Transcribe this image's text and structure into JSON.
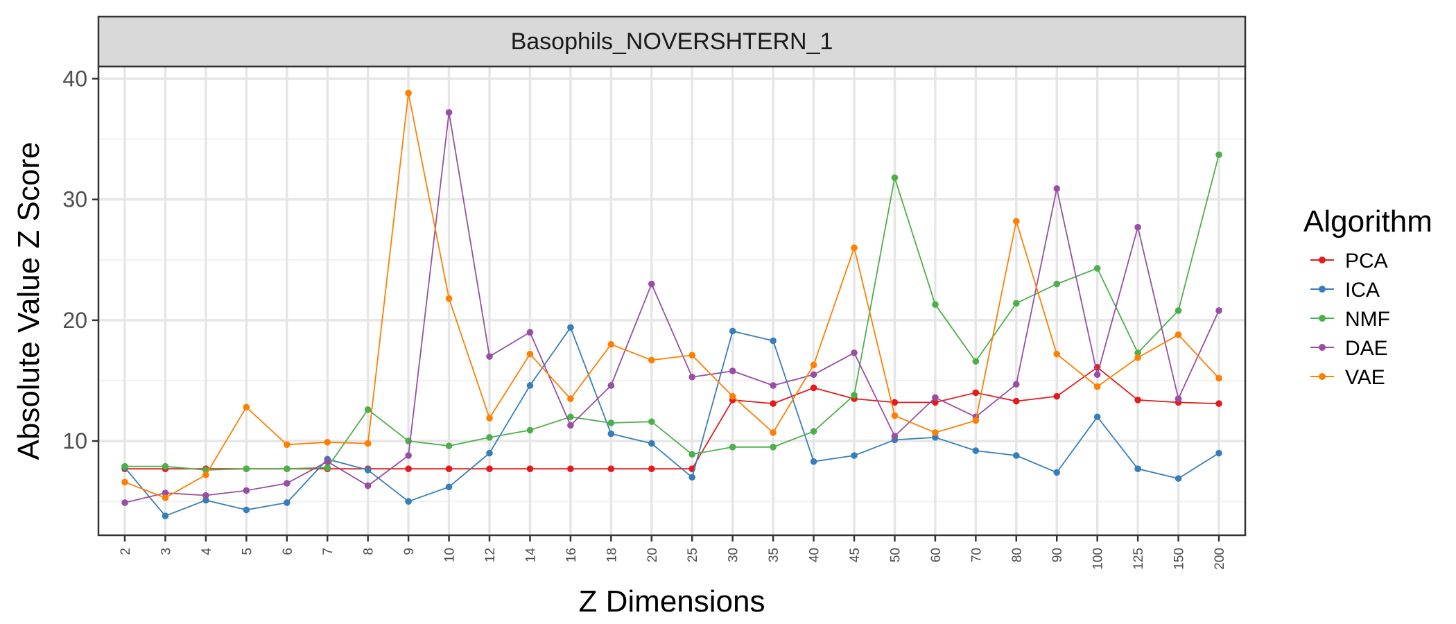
{
  "chart_data": {
    "type": "line",
    "title": "",
    "facet_label": "Basophils_NOVERSHTERN_1",
    "xlabel": "Z Dimensions",
    "ylabel": "Absolute Value Z Score",
    "x": [
      "2",
      "3",
      "4",
      "5",
      "6",
      "7",
      "8",
      "9",
      "10",
      "12",
      "14",
      "16",
      "18",
      "20",
      "25",
      "30",
      "35",
      "40",
      "45",
      "50",
      "60",
      "70",
      "80",
      "90",
      "100",
      "125",
      "150",
      "200"
    ],
    "ylim": [
      2.2,
      41
    ],
    "yticks": [
      10,
      20,
      30,
      40
    ],
    "grid": true,
    "legend": {
      "title": "Algorithm",
      "position": "right"
    },
    "series": [
      {
        "name": "PCA",
        "color": "#e41a1c",
        "values": [
          7.7,
          7.7,
          7.7,
          7.7,
          7.7,
          7.7,
          7.7,
          7.7,
          7.7,
          7.7,
          7.7,
          7.7,
          7.7,
          7.7,
          7.7,
          13.4,
          13.1,
          14.4,
          13.5,
          13.2,
          13.2,
          14.0,
          13.3,
          13.7,
          16.1,
          13.4,
          13.2,
          13.1
        ]
      },
      {
        "name": "ICA",
        "color": "#377eb8",
        "values": [
          7.8,
          3.8,
          5.1,
          4.3,
          4.9,
          8.5,
          7.6,
          5.0,
          6.2,
          9.0,
          14.6,
          19.4,
          10.6,
          9.8,
          7.0,
          19.1,
          18.3,
          8.3,
          8.8,
          10.1,
          10.3,
          9.2,
          8.8,
          7.4,
          12.0,
          7.7,
          6.9,
          9.0
        ]
      },
      {
        "name": "NMF",
        "color": "#4daf4a",
        "values": [
          7.9,
          7.9,
          7.6,
          7.7,
          7.7,
          7.8,
          12.6,
          10.0,
          9.6,
          10.3,
          10.9,
          12.0,
          11.5,
          11.6,
          8.9,
          9.5,
          9.5,
          10.8,
          13.8,
          31.8,
          21.3,
          16.6,
          21.4,
          23.0,
          24.3,
          17.3,
          20.8,
          33.7
        ]
      },
      {
        "name": "DAE",
        "color": "#984ea3",
        "values": [
          4.9,
          5.7,
          5.5,
          5.9,
          6.5,
          8.3,
          6.3,
          8.8,
          37.2,
          17.0,
          19.0,
          11.3,
          14.6,
          23.0,
          15.3,
          15.8,
          14.6,
          15.5,
          17.3,
          10.4,
          13.6,
          12.0,
          14.7,
          30.9,
          15.5,
          27.7,
          13.5,
          20.8
        ]
      },
      {
        "name": "VAE",
        "color": "#ff7f00",
        "values": [
          6.6,
          5.3,
          7.2,
          12.8,
          9.7,
          9.9,
          9.8,
          38.8,
          21.8,
          11.9,
          17.2,
          13.5,
          18.0,
          16.7,
          17.1,
          13.7,
          10.7,
          16.3,
          26.0,
          12.1,
          10.7,
          11.7,
          28.2,
          17.2,
          14.5,
          16.9,
          18.8,
          15.2
        ]
      }
    ]
  }
}
